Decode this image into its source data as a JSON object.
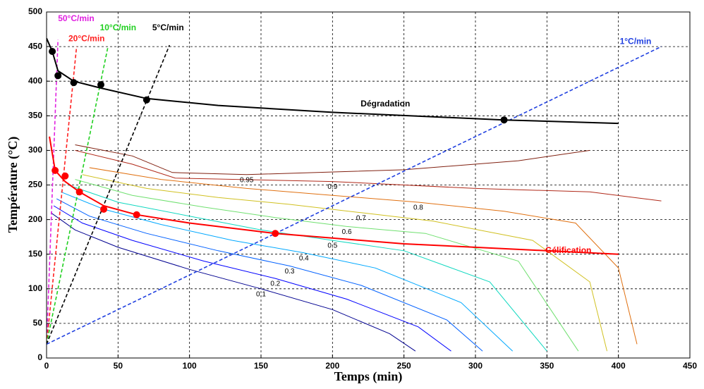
{
  "chart_data": {
    "type": "line",
    "xlabel": "Temps (min)",
    "ylabel": "Température (°C)",
    "xlim": [
      0,
      450
    ],
    "ylim": [
      0,
      500
    ],
    "xticks": [
      0,
      50,
      100,
      150,
      200,
      250,
      300,
      350,
      400,
      450
    ],
    "yticks": [
      0,
      50,
      100,
      150,
      200,
      250,
      300,
      350,
      400,
      450,
      500
    ],
    "grid": true,
    "series": [
      {
        "name": "0.1",
        "color": "#000090",
        "x": [
          3,
          20,
          50,
          100,
          150,
          200,
          240,
          258
        ],
        "values": [
          210,
          185,
          160,
          128,
          100,
          70,
          35,
          10
        ]
      },
      {
        "name": "0.2",
        "color": "#0000ff",
        "x": [
          5,
          25,
          60,
          110,
          160,
          210,
          260,
          283
        ],
        "values": [
          220,
          195,
          170,
          140,
          115,
          85,
          45,
          10
        ]
      },
      {
        "name": "0.3",
        "color": "#0060ff",
        "x": [
          7,
          30,
          70,
          120,
          170,
          220,
          280,
          305
        ],
        "values": [
          230,
          205,
          180,
          155,
          133,
          105,
          55,
          10
        ]
      },
      {
        "name": "0.4",
        "color": "#00a8ff",
        "x": [
          10,
          40,
          80,
          130,
          180,
          230,
          290,
          326
        ],
        "values": [
          240,
          215,
          193,
          170,
          152,
          130,
          80,
          10
        ]
      },
      {
        "name": "0.5",
        "color": "#10d8c0",
        "x": [
          15,
          50,
          100,
          150,
          200,
          250,
          310,
          350
        ],
        "values": [
          250,
          225,
          205,
          185,
          170,
          155,
          110,
          10
        ]
      },
      {
        "name": "0.6",
        "color": "#70e070",
        "x": [
          20,
          60,
          110,
          160,
          210,
          265,
          330,
          372
        ],
        "values": [
          258,
          235,
          218,
          203,
          190,
          180,
          140,
          10
        ]
      },
      {
        "name": "0.7",
        "color": "#d0c020",
        "x": [
          25,
          70,
          120,
          170,
          220,
          270,
          340,
          380,
          392
        ],
        "values": [
          265,
          245,
          232,
          222,
          210,
          198,
          170,
          110,
          10
        ]
      },
      {
        "name": "0.8",
        "color": "#e07010",
        "x": [
          30,
          80,
          140,
          200,
          260,
          320,
          370,
          400,
          413
        ],
        "values": [
          275,
          258,
          245,
          235,
          225,
          212,
          195,
          130,
          20
        ]
      },
      {
        "name": "0.9",
        "color": "#b02818",
        "x": [
          20,
          60,
          90,
          200,
          300,
          380,
          430
        ],
        "values": [
          300,
          280,
          260,
          255,
          245,
          240,
          227
        ]
      },
      {
        "name": "0.95",
        "color": "#802010",
        "x": [
          20,
          60,
          88,
          140,
          250,
          330,
          380
        ],
        "values": [
          308,
          292,
          268,
          265,
          272,
          285,
          300
        ]
      },
      {
        "name": "50°C/min",
        "color": "#e020e0",
        "dash": true,
        "x": [
          0,
          8
        ],
        "values": [
          20,
          460
        ]
      },
      {
        "name": "20°C/min",
        "color": "#ff2020",
        "dash": true,
        "x": [
          0,
          21
        ],
        "values": [
          20,
          450
        ]
      },
      {
        "name": "10°C/min",
        "color": "#20d020",
        "dash": true,
        "x": [
          0,
          43
        ],
        "values": [
          20,
          450
        ]
      },
      {
        "name": "5°C/min",
        "color": "#000000",
        "dash": true,
        "x": [
          0,
          86
        ],
        "values": [
          20,
          452
        ]
      },
      {
        "name": "1°C/min",
        "color": "#2040e0",
        "dash": true,
        "x": [
          0,
          430
        ],
        "values": [
          20,
          450
        ]
      },
      {
        "name": "Dégradation",
        "color": "#000000",
        "x": [
          0,
          4,
          8,
          19,
          38,
          70,
          120,
          200,
          320,
          400
        ],
        "values": [
          462,
          443,
          415,
          400,
          390,
          375,
          365,
          355,
          344,
          339
        ]
      },
      {
        "name": "Gélification",
        "color": "#ff0000",
        "x": [
          2,
          6,
          13,
          23,
          40,
          63,
          100,
          160,
          250,
          400
        ],
        "values": [
          320,
          271,
          255,
          240,
          220,
          207,
          195,
          180,
          165,
          150
        ]
      },
      {
        "color": "#000000",
        "marker": true,
        "x": [
          4,
          8,
          19,
          38,
          70,
          320
        ],
        "values": [
          443,
          408,
          398,
          395,
          373,
          344
        ]
      },
      {
        "color": "#ff0000",
        "marker": true,
        "x": [
          6,
          13,
          23,
          40,
          63,
          160
        ],
        "values": [
          271,
          263,
          240,
          215,
          207,
          180
        ]
      }
    ]
  }
}
